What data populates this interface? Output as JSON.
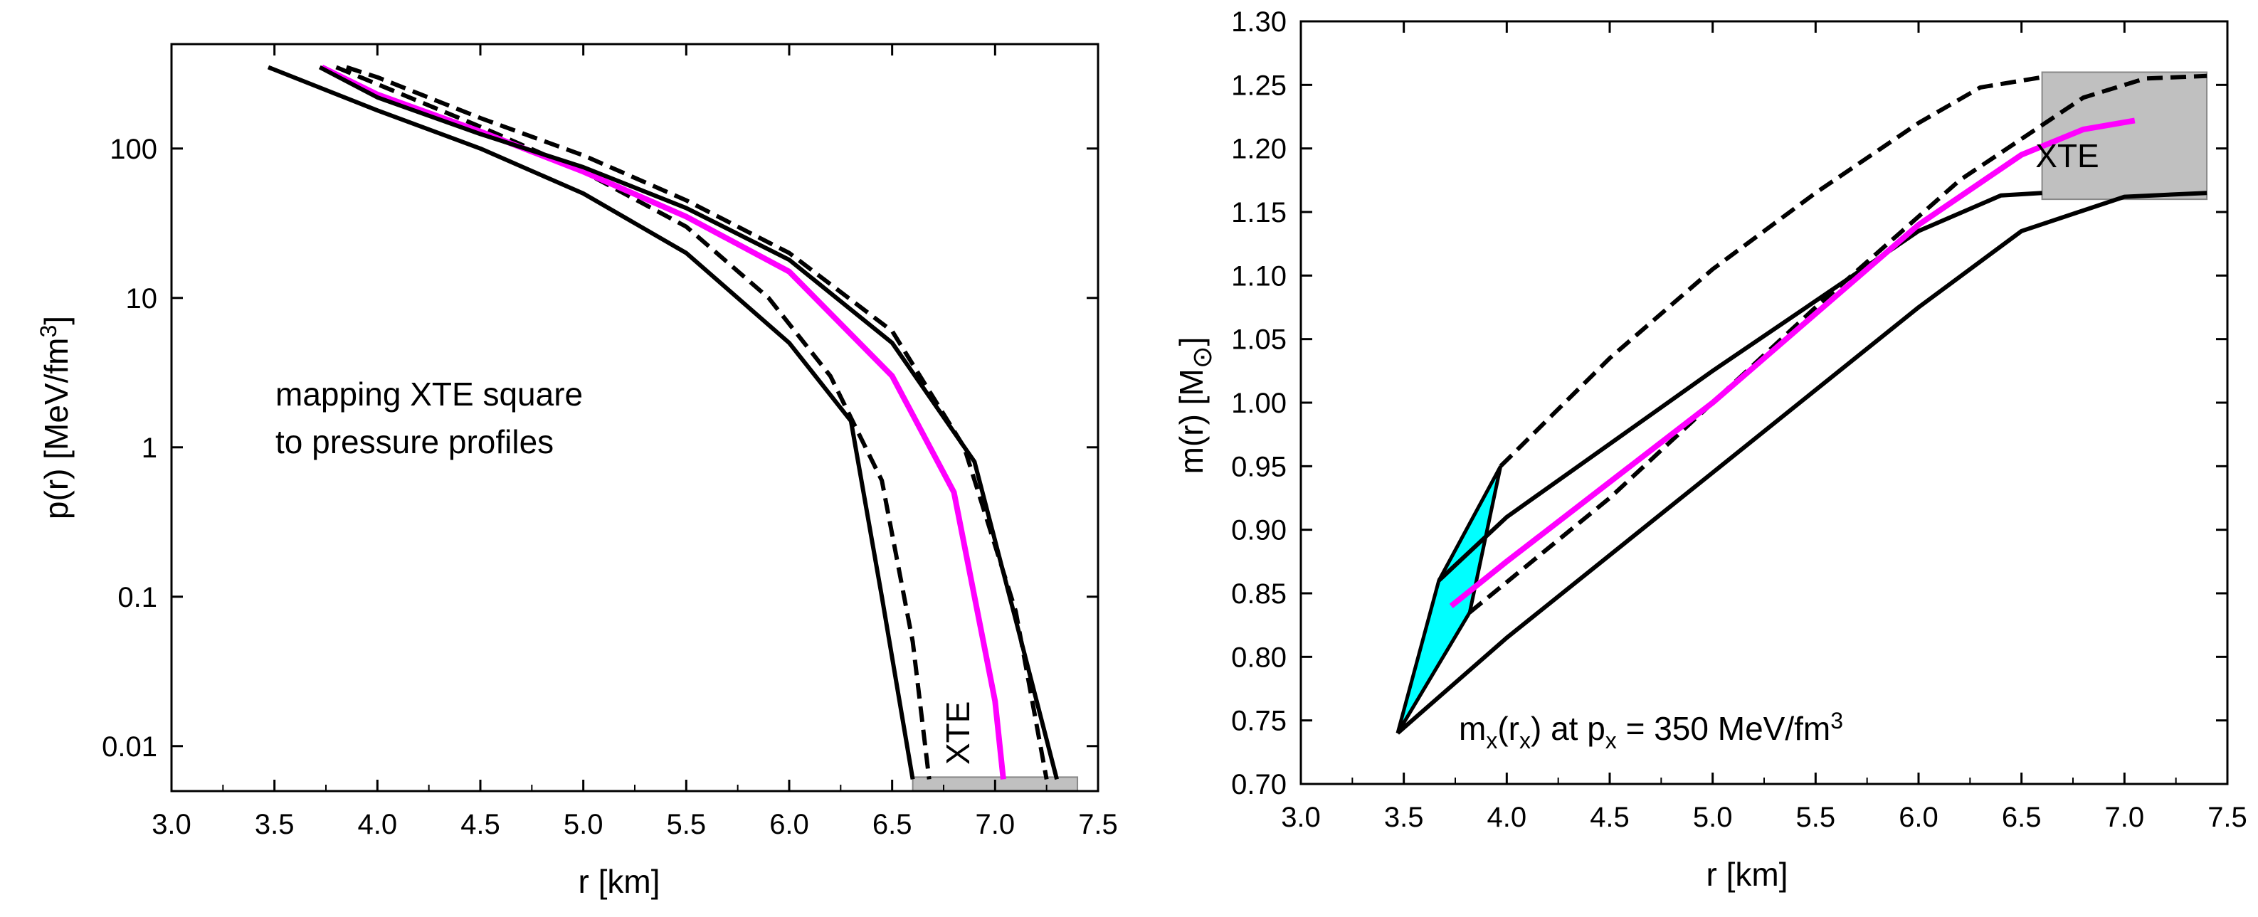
{
  "chart_data": [
    {
      "id": "left",
      "type": "line",
      "yscale": "log",
      "xlabel": "r [km]",
      "ylabel": {
        "base": "p(r) [MeV/fm",
        "sup": "3",
        "tail": "]"
      },
      "xlim": [
        3.0,
        7.5
      ],
      "ylim": [
        0.005,
        500
      ],
      "xticks": [
        "3.0",
        "3.5",
        "4.0",
        "4.5",
        "5.0",
        "5.5",
        "6.0",
        "6.5",
        "7.0",
        "7.5"
      ],
      "yticks": [
        {
          "value": 0.01,
          "label": "0.01"
        },
        {
          "value": 0.1,
          "label": "0.1"
        },
        {
          "value": 1,
          "label": "1"
        },
        {
          "value": 10,
          "label": "10"
        },
        {
          "value": 100,
          "label": "100"
        }
      ],
      "annotations": {
        "line1": "mapping XTE square",
        "line2": "to pressure profiles",
        "xte": "XTE"
      },
      "xte_box": {
        "x0": 6.6,
        "x1": 7.4,
        "y0": 0.005,
        "y1": 0.0062
      },
      "series": [
        {
          "name": "solid-inner",
          "style": "solid",
          "color": "#000000",
          "x": [
            3.47,
            4.0,
            4.5,
            5.0,
            5.5,
            6.0,
            6.3,
            6.45,
            6.6
          ],
          "y": [
            350,
            180,
            100,
            50,
            20,
            5,
            1.5,
            0.1,
            0.006
          ]
        },
        {
          "name": "dashed-inner",
          "style": "dashed",
          "color": "#000000",
          "x": [
            3.8,
            4.5,
            5.0,
            5.5,
            5.9,
            6.2,
            6.45,
            6.6,
            6.68
          ],
          "y": [
            350,
            140,
            70,
            30,
            10,
            3,
            0.6,
            0.05,
            0.006
          ]
        },
        {
          "name": "magenta-central",
          "style": "solid",
          "color": "#ff00ff",
          "x": [
            3.73,
            4.0,
            4.5,
            5.0,
            5.5,
            6.0,
            6.5,
            6.8,
            7.0,
            7.04
          ],
          "y": [
            350,
            230,
            130,
            70,
            35,
            15,
            3,
            0.5,
            0.02,
            0.006
          ]
        },
        {
          "name": "solid-outer",
          "style": "solid",
          "color": "#000000",
          "x": [
            3.72,
            4.0,
            4.5,
            5.0,
            5.5,
            6.0,
            6.5,
            6.9,
            7.1,
            7.3
          ],
          "y": [
            350,
            220,
            125,
            75,
            40,
            18,
            5,
            0.8,
            0.07,
            0.006
          ]
        },
        {
          "name": "dashed-outer",
          "style": "dashed",
          "color": "#000000",
          "x": [
            3.85,
            4.0,
            4.5,
            5.0,
            5.5,
            6.0,
            6.5,
            6.85,
            7.1,
            7.25
          ],
          "y": [
            350,
            300,
            160,
            90,
            45,
            20,
            6,
            1.0,
            0.08,
            0.006
          ]
        }
      ]
    },
    {
      "id": "right",
      "type": "line",
      "xlabel": "r [km]",
      "ylabel": {
        "base": "m(r) [M",
        "sub": "⊙",
        "tail": "]"
      },
      "xlim": [
        3.0,
        7.5
      ],
      "ylim": [
        0.7,
        1.3
      ],
      "xticks": [
        "3.0",
        "3.5",
        "4.0",
        "4.5",
        "5.0",
        "5.5",
        "6.0",
        "6.5",
        "7.0",
        "7.5"
      ],
      "yticks": [
        "0.70",
        "0.75",
        "0.80",
        "0.85",
        "0.90",
        "0.95",
        "1.00",
        "1.05",
        "1.10",
        "1.15",
        "1.20",
        "1.25",
        "1.30"
      ],
      "annotations": {
        "xte": "XTE",
        "mx_label": {
          "m": "m",
          "sub1": "x",
          "open": "(r",
          "sub2": "x",
          "mid": ") at p",
          "sub3": "x",
          "eq": " = 350 MeV/fm",
          "sup": "3"
        }
      },
      "xte_box": {
        "x0": 6.6,
        "x1": 7.4,
        "y0": 1.16,
        "y1": 1.26
      },
      "cyan_region": {
        "x": [
          3.47,
          3.67,
          3.97,
          3.82
        ],
        "y": [
          0.74,
          0.86,
          0.95,
          0.835
        ],
        "color": "#00ffff"
      },
      "series": [
        {
          "name": "solid-lower",
          "style": "solid",
          "color": "#000000",
          "x": [
            3.47,
            4.0,
            5.0,
            6.0,
            6.5,
            7.0,
            7.4
          ],
          "y": [
            0.74,
            0.815,
            0.945,
            1.075,
            1.135,
            1.162,
            1.165
          ]
        },
        {
          "name": "solid-upper",
          "style": "solid",
          "color": "#000000",
          "x": [
            3.67,
            4.0,
            5.0,
            6.0,
            6.4,
            6.6
          ],
          "y": [
            0.86,
            0.91,
            1.025,
            1.135,
            1.163,
            1.165
          ]
        },
        {
          "name": "dashed-lower",
          "style": "dashed",
          "color": "#000000",
          "x": [
            3.82,
            4.5,
            5.5,
            6.2,
            6.8,
            7.1,
            7.4
          ],
          "y": [
            0.835,
            0.925,
            1.075,
            1.175,
            1.24,
            1.255,
            1.257
          ]
        },
        {
          "name": "dashed-upper",
          "style": "dashed",
          "color": "#000000",
          "x": [
            3.97,
            4.5,
            5.0,
            5.5,
            6.0,
            6.3,
            6.6
          ],
          "y": [
            0.95,
            1.035,
            1.105,
            1.165,
            1.22,
            1.248,
            1.256
          ]
        },
        {
          "name": "magenta-central",
          "style": "solid",
          "color": "#ff00ff",
          "x": [
            3.73,
            4.0,
            5.0,
            6.0,
            6.5,
            6.8,
            7.05
          ],
          "y": [
            0.84,
            0.875,
            1.0,
            1.14,
            1.195,
            1.215,
            1.222
          ]
        }
      ]
    }
  ]
}
